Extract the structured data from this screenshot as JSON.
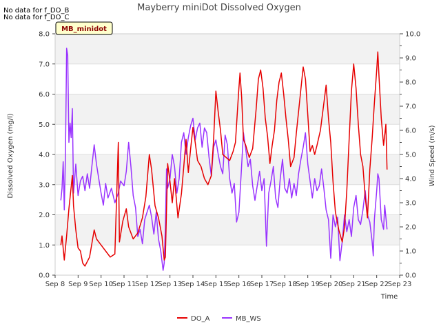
{
  "notes": [
    "No data for f_DO_B",
    "No data for f_DO_C"
  ],
  "site_label": "MB_minidot",
  "chart_data": {
    "type": "line",
    "title": "Mayberry miniDot Dissolved Oxygen",
    "xlabel": "Time",
    "ylabel": "Dissolved Oxygen (mg/l)",
    "y2label": "Wind Speed (m/s)",
    "xlim": [
      8,
      23
    ],
    "ylim": [
      0,
      8
    ],
    "y2lim": [
      0,
      10
    ],
    "x_ticks": [
      8,
      9,
      10,
      11,
      12,
      13,
      14,
      15,
      16,
      17,
      18,
      19,
      20,
      21,
      22,
      23
    ],
    "x_tick_labels": [
      "Sep 8",
      "Sep 9",
      "Sep 10",
      "Sep 11",
      "Sep 12",
      "Sep 13",
      "Sep 14",
      "Sep 15",
      "Sep 16",
      "Sep 17",
      "Sep 18",
      "Sep 19",
      "Sep 20",
      "Sep 21",
      "Sep 22",
      "Sep 23"
    ],
    "y_ticks": [
      "0.0",
      "1.0",
      "2.0",
      "3.0",
      "4.0",
      "5.0",
      "6.0",
      "7.0",
      "8.0"
    ],
    "y2_ticks": [
      "0.0",
      "1.0",
      "2.0",
      "3.0",
      "4.0",
      "5.0",
      "6.0",
      "7.0",
      "8.0",
      "9.0",
      "10.0"
    ],
    "grid": true,
    "legend_position": "bottom-center",
    "series": [
      {
        "name": "DO_A",
        "color": "#e60000",
        "axis": "left",
        "points": [
          [
            8.25,
            1.0
          ],
          [
            8.3,
            1.3
          ],
          [
            8.4,
            0.5
          ],
          [
            8.5,
            1.3
          ],
          [
            8.6,
            2.2
          ],
          [
            8.75,
            3.3
          ],
          [
            8.8,
            2.3
          ],
          [
            8.9,
            1.5
          ],
          [
            9.0,
            0.9
          ],
          [
            9.1,
            0.8
          ],
          [
            9.2,
            0.4
          ],
          [
            9.3,
            0.3
          ],
          [
            9.5,
            0.6
          ],
          [
            9.7,
            1.5
          ],
          [
            9.8,
            1.2
          ],
          [
            10.0,
            1.0
          ],
          [
            10.2,
            0.8
          ],
          [
            10.4,
            0.6
          ],
          [
            10.6,
            0.7
          ],
          [
            10.75,
            4.4
          ],
          [
            10.8,
            1.1
          ],
          [
            10.95,
            1.8
          ],
          [
            11.1,
            2.2
          ],
          [
            11.2,
            1.6
          ],
          [
            11.4,
            1.2
          ],
          [
            11.6,
            1.4
          ],
          [
            11.8,
            1.9
          ],
          [
            11.95,
            2.6
          ],
          [
            12.1,
            4.0
          ],
          [
            12.2,
            3.5
          ],
          [
            12.35,
            2.3
          ],
          [
            12.5,
            1.9
          ],
          [
            12.65,
            1.3
          ],
          [
            12.75,
            0.5
          ],
          [
            12.8,
            0.6
          ],
          [
            12.9,
            3.7
          ],
          [
            13.0,
            3.1
          ],
          [
            13.1,
            2.4
          ],
          [
            13.2,
            3.2
          ],
          [
            13.35,
            1.9
          ],
          [
            13.5,
            2.7
          ],
          [
            13.6,
            3.6
          ],
          [
            13.7,
            4.5
          ],
          [
            13.8,
            3.4
          ],
          [
            13.9,
            4.2
          ],
          [
            14.0,
            4.9
          ],
          [
            14.1,
            4.4
          ],
          [
            14.2,
            3.8
          ],
          [
            14.35,
            3.6
          ],
          [
            14.5,
            3.2
          ],
          [
            14.65,
            3.0
          ],
          [
            14.8,
            3.3
          ],
          [
            14.9,
            4.5
          ],
          [
            15.0,
            6.1
          ],
          [
            15.1,
            5.4
          ],
          [
            15.2,
            4.8
          ],
          [
            15.3,
            4.0
          ],
          [
            15.45,
            3.9
          ],
          [
            15.6,
            3.8
          ],
          [
            15.75,
            4.1
          ],
          [
            15.85,
            4.4
          ],
          [
            15.95,
            5.6
          ],
          [
            16.0,
            6.2
          ],
          [
            16.05,
            6.7
          ],
          [
            16.12,
            5.9
          ],
          [
            16.2,
            4.5
          ],
          [
            16.3,
            4.3
          ],
          [
            16.45,
            3.9
          ],
          [
            16.6,
            4.2
          ],
          [
            16.75,
            5.5
          ],
          [
            16.85,
            6.5
          ],
          [
            16.95,
            6.8
          ],
          [
            17.05,
            6.2
          ],
          [
            17.15,
            5.2
          ],
          [
            17.25,
            4.6
          ],
          [
            17.35,
            3.7
          ],
          [
            17.45,
            4.3
          ],
          [
            17.55,
            4.8
          ],
          [
            17.65,
            5.8
          ],
          [
            17.75,
            6.4
          ],
          [
            17.85,
            6.7
          ],
          [
            17.95,
            6.0
          ],
          [
            18.05,
            5.2
          ],
          [
            18.15,
            4.5
          ],
          [
            18.25,
            3.6
          ],
          [
            18.4,
            3.9
          ],
          [
            18.5,
            4.7
          ],
          [
            18.65,
            5.8
          ],
          [
            18.8,
            6.9
          ],
          [
            18.9,
            6.5
          ],
          [
            19.0,
            5.3
          ],
          [
            19.1,
            4.1
          ],
          [
            19.2,
            4.3
          ],
          [
            19.3,
            4.0
          ],
          [
            19.4,
            4.3
          ],
          [
            19.55,
            4.8
          ],
          [
            19.7,
            5.7
          ],
          [
            19.8,
            6.3
          ],
          [
            19.9,
            5.2
          ],
          [
            20.0,
            4.4
          ],
          [
            20.1,
            3.1
          ],
          [
            20.2,
            2.1
          ],
          [
            20.35,
            1.5
          ],
          [
            20.5,
            1.1
          ],
          [
            20.6,
            1.6
          ],
          [
            20.7,
            2.8
          ],
          [
            20.8,
            4.5
          ],
          [
            20.9,
            6.1
          ],
          [
            21.0,
            7.0
          ],
          [
            21.1,
            6.2
          ],
          [
            21.2,
            5.0
          ],
          [
            21.3,
            4.0
          ],
          [
            21.4,
            3.6
          ],
          [
            21.5,
            2.6
          ],
          [
            21.6,
            1.9
          ],
          [
            21.7,
            3.5
          ],
          [
            21.8,
            4.5
          ],
          [
            21.9,
            5.7
          ],
          [
            22.0,
            6.8
          ],
          [
            22.05,
            7.4
          ],
          [
            22.1,
            6.6
          ],
          [
            22.2,
            5.2
          ],
          [
            22.3,
            4.3
          ],
          [
            22.4,
            5.0
          ],
          [
            22.45,
            3.5
          ]
        ]
      },
      {
        "name": "MB_WS",
        "color": "#9933ff",
        "axis": "right",
        "points": [
          [
            8.25,
            3.1
          ],
          [
            8.3,
            3.6
          ],
          [
            8.35,
            4.7
          ],
          [
            8.4,
            2.7
          ],
          [
            8.45,
            5.0
          ],
          [
            8.5,
            9.4
          ],
          [
            8.55,
            9.1
          ],
          [
            8.6,
            5.5
          ],
          [
            8.65,
            6.3
          ],
          [
            8.7,
            5.7
          ],
          [
            8.75,
            6.9
          ],
          [
            8.8,
            3.4
          ],
          [
            8.9,
            4.6
          ],
          [
            9.0,
            3.3
          ],
          [
            9.1,
            3.9
          ],
          [
            9.2,
            4.1
          ],
          [
            9.3,
            3.5
          ],
          [
            9.4,
            4.2
          ],
          [
            9.5,
            3.6
          ],
          [
            9.6,
            4.5
          ],
          [
            9.7,
            5.4
          ],
          [
            9.8,
            4.6
          ],
          [
            9.9,
            4.0
          ],
          [
            10.0,
            3.4
          ],
          [
            10.1,
            2.9
          ],
          [
            10.2,
            3.8
          ],
          [
            10.3,
            3.2
          ],
          [
            10.45,
            3.6
          ],
          [
            10.6,
            3.0
          ],
          [
            10.75,
            3.4
          ],
          [
            10.85,
            3.9
          ],
          [
            11.0,
            3.7
          ],
          [
            11.1,
            4.3
          ],
          [
            11.2,
            5.5
          ],
          [
            11.3,
            4.5
          ],
          [
            11.4,
            3.3
          ],
          [
            11.5,
            2.8
          ],
          [
            11.6,
            1.6
          ],
          [
            11.7,
            1.9
          ],
          [
            11.8,
            1.3
          ],
          [
            11.9,
            2.3
          ],
          [
            12.0,
            2.6
          ],
          [
            12.1,
            2.9
          ],
          [
            12.2,
            2.4
          ],
          [
            12.3,
            1.7
          ],
          [
            12.4,
            2.6
          ],
          [
            12.5,
            1.5
          ],
          [
            12.6,
            1.0
          ],
          [
            12.7,
            0.2
          ],
          [
            12.75,
            0.5
          ],
          [
            12.8,
            2.0
          ],
          [
            12.85,
            4.4
          ],
          [
            12.9,
            3.6
          ],
          [
            13.0,
            4.0
          ],
          [
            13.1,
            5.0
          ],
          [
            13.2,
            4.5
          ],
          [
            13.3,
            3.4
          ],
          [
            13.4,
            4.0
          ],
          [
            13.5,
            5.5
          ],
          [
            13.6,
            5.9
          ],
          [
            13.7,
            5.0
          ],
          [
            13.8,
            5.7
          ],
          [
            13.9,
            6.2
          ],
          [
            14.0,
            6.5
          ],
          [
            14.1,
            5.6
          ],
          [
            14.2,
            6.1
          ],
          [
            14.3,
            6.3
          ],
          [
            14.4,
            5.3
          ],
          [
            14.5,
            6.1
          ],
          [
            14.6,
            5.9
          ],
          [
            14.7,
            4.9
          ],
          [
            14.8,
            4.1
          ],
          [
            14.9,
            5.3
          ],
          [
            15.0,
            5.6
          ],
          [
            15.1,
            5.0
          ],
          [
            15.2,
            4.5
          ],
          [
            15.3,
            4.2
          ],
          [
            15.4,
            5.8
          ],
          [
            15.5,
            5.4
          ],
          [
            15.6,
            4.0
          ],
          [
            15.7,
            3.4
          ],
          [
            15.8,
            3.8
          ],
          [
            15.9,
            2.2
          ],
          [
            16.0,
            2.6
          ],
          [
            16.1,
            4.2
          ],
          [
            16.2,
            5.9
          ],
          [
            16.3,
            5.2
          ],
          [
            16.4,
            4.5
          ],
          [
            16.5,
            4.8
          ],
          [
            16.6,
            3.7
          ],
          [
            16.7,
            3.1
          ],
          [
            16.8,
            3.7
          ],
          [
            16.9,
            4.3
          ],
          [
            17.0,
            3.5
          ],
          [
            17.1,
            4.0
          ],
          [
            17.2,
            1.2
          ],
          [
            17.3,
            3.4
          ],
          [
            17.4,
            3.9
          ],
          [
            17.5,
            4.5
          ],
          [
            17.6,
            3.2
          ],
          [
            17.7,
            2.8
          ],
          [
            17.8,
            4.0
          ],
          [
            17.9,
            4.8
          ],
          [
            18.0,
            3.6
          ],
          [
            18.1,
            3.4
          ],
          [
            18.2,
            4.0
          ],
          [
            18.3,
            3.2
          ],
          [
            18.4,
            3.8
          ],
          [
            18.5,
            3.3
          ],
          [
            18.6,
            4.2
          ],
          [
            18.7,
            4.8
          ],
          [
            18.8,
            5.3
          ],
          [
            18.9,
            5.9
          ],
          [
            19.0,
            4.6
          ],
          [
            19.1,
            3.9
          ],
          [
            19.2,
            3.2
          ],
          [
            19.3,
            4.0
          ],
          [
            19.4,
            3.5
          ],
          [
            19.5,
            3.7
          ],
          [
            19.6,
            4.4
          ],
          [
            19.7,
            3.6
          ],
          [
            19.8,
            2.7
          ],
          [
            19.9,
            2.3
          ],
          [
            20.0,
            0.7
          ],
          [
            20.1,
            2.5
          ],
          [
            20.2,
            2.0
          ],
          [
            20.3,
            2.4
          ],
          [
            20.4,
            0.6
          ],
          [
            20.5,
            1.4
          ],
          [
            20.6,
            2.5
          ],
          [
            20.7,
            1.8
          ],
          [
            20.8,
            2.3
          ],
          [
            20.9,
            1.6
          ],
          [
            21.0,
            2.8
          ],
          [
            21.1,
            3.3
          ],
          [
            21.2,
            2.3
          ],
          [
            21.3,
            2.1
          ],
          [
            21.4,
            2.7
          ],
          [
            21.5,
            3.5
          ],
          [
            21.6,
            2.5
          ],
          [
            21.7,
            2.2
          ],
          [
            21.8,
            1.4
          ],
          [
            21.85,
            0.8
          ],
          [
            21.9,
            2.3
          ],
          [
            22.0,
            3.5
          ],
          [
            22.05,
            4.2
          ],
          [
            22.1,
            4.0
          ],
          [
            22.2,
            2.3
          ],
          [
            22.3,
            1.9
          ],
          [
            22.35,
            2.9
          ],
          [
            22.45,
            1.9
          ]
        ]
      }
    ]
  }
}
